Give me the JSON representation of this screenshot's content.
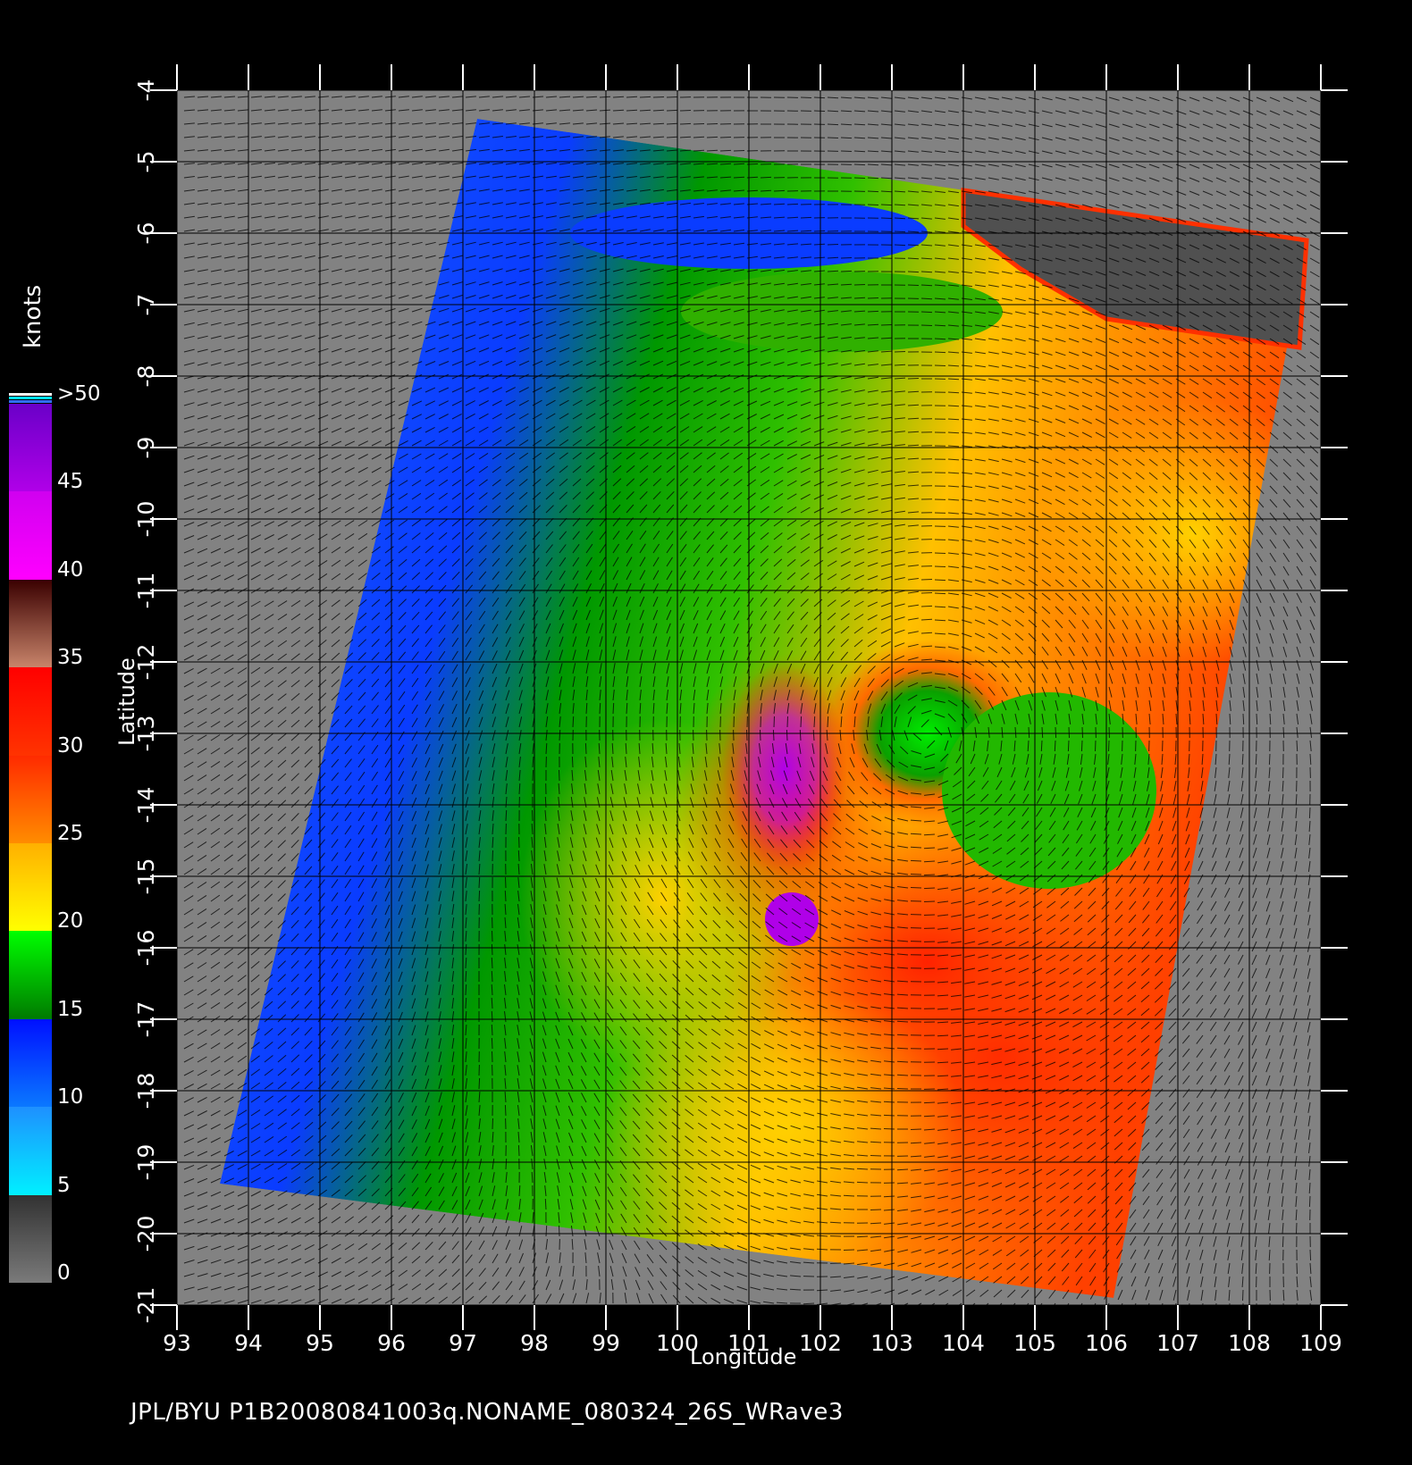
{
  "units_label": "knots",
  "footer_text": "JPL/BYU  P1B20080841003q.NONAME_080324_26S_WRave3",
  "axes": {
    "xlabel": "Longitude",
    "ylabel": "Latitude",
    "x_ticks": [
      "93",
      "94",
      "95",
      "96",
      "97",
      "98",
      "99",
      "100",
      "101",
      "102",
      "103",
      "104",
      "105",
      "106",
      "107",
      "108",
      "109"
    ],
    "y_ticks": [
      "-4",
      "-5",
      "-6",
      "-7",
      "-8",
      "-9",
      "-10",
      "-11",
      "-12",
      "-13",
      "-14",
      "-15",
      "-16",
      "-17",
      "-18",
      "-19",
      "-20",
      "-21"
    ],
    "xlim": [
      93,
      109
    ],
    "ylim": [
      -21,
      -4
    ]
  },
  "colorbar": {
    "labels": [
      "0",
      "5",
      "10",
      "15",
      "20",
      "25",
      "30",
      "35",
      "40",
      "45",
      ">50"
    ],
    "segments": [
      {
        "from": 0,
        "to": 5,
        "top": "#323232",
        "bottom": "#7a7a7a"
      },
      {
        "from": 5,
        "to": 10,
        "top": "#1e90ff",
        "bottom": "#00f0ff"
      },
      {
        "from": 10,
        "to": 15,
        "top": "#0010ff",
        "bottom": "#0a78ff"
      },
      {
        "from": 15,
        "to": 20,
        "top": "#00ff00",
        "bottom": "#007a00"
      },
      {
        "from": 20,
        "to": 25,
        "top": "#ffb000",
        "bottom": "#ffff00"
      },
      {
        "from": 25,
        "to": 30,
        "top": "#ff2a00",
        "bottom": "#ff8c00"
      },
      {
        "from": 30,
        "to": 35,
        "top": "#ff0000",
        "bottom": "#ff3300"
      },
      {
        "from": 35,
        "to": 40,
        "top": "#3a0000",
        "bottom": "#c8846a"
      },
      {
        "from": 40,
        "to": 45,
        "top": "#d000f0",
        "bottom": "#ff00ff"
      },
      {
        "from": 45,
        "to": 50,
        "top": "#6a00c8",
        "bottom": "#b000e8"
      }
    ],
    "top_bands": [
      "#ffffff",
      "#00e0ff",
      "#3070ff"
    ]
  },
  "colors": {
    "background": "#000000",
    "no_data": "#828282",
    "land": "#505050",
    "grid": "#000000"
  },
  "wind_field": {
    "type": "scatterometer ocean wind speed",
    "center_lon": 103.5,
    "center_lat": -13.0,
    "max_speed_region_lon": 101.5,
    "max_speed_region_lat": -13.5,
    "swath_corners": [
      [
        97.2,
        -4.4
      ],
      [
        108.8,
        -6.1
      ],
      [
        106.1,
        -20.9
      ],
      [
        93.6,
        -19.3
      ]
    ]
  }
}
